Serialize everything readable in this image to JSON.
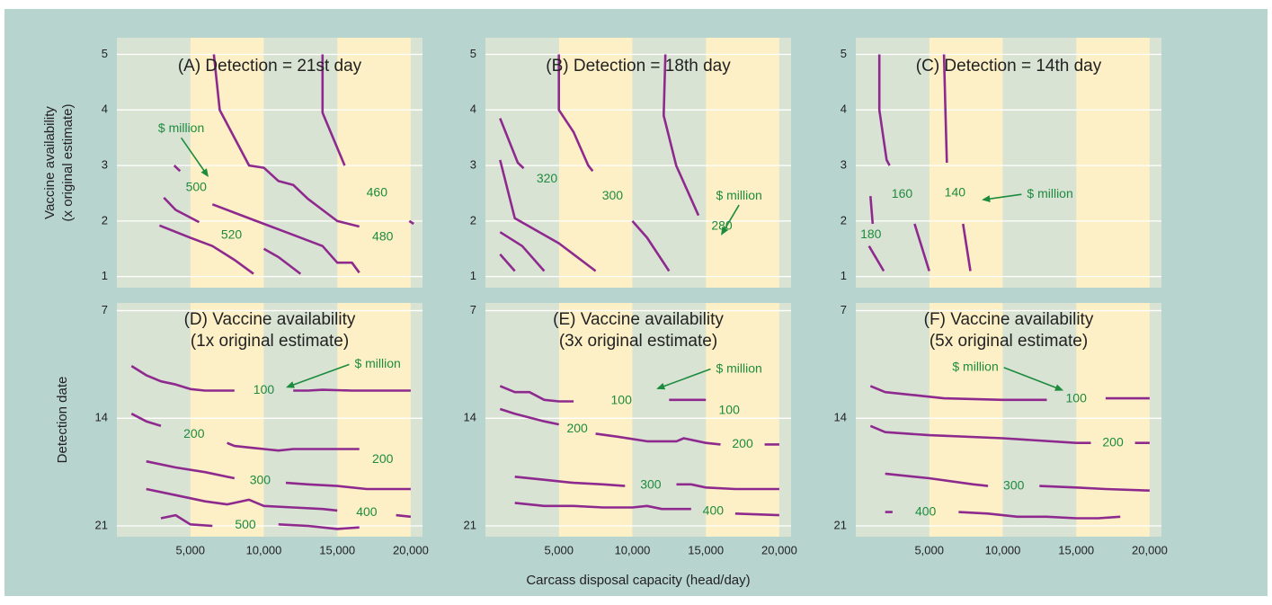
{
  "y_label_top": [
    "Vaccine availability",
    "(x original estimate)"
  ],
  "y_label_bottom": "Detection date",
  "x_label": "Carcass disposal capacity (head/day)",
  "chart_data": [
    {
      "type": "line",
      "title": "(A) Detection = 21st day",
      "xlim": [
        0,
        20800
      ],
      "ylim": [
        0.8,
        5.3
      ],
      "xticks": [
        5000,
        10000,
        15000,
        20000
      ],
      "yticks": [
        1,
        2,
        3,
        4,
        5
      ],
      "grid": true,
      "band_colors": [
        "#d9e3d4",
        "#fdf0c6"
      ],
      "label_color": "#1d8b3e",
      "series": [
        {
          "name": "460",
          "color": "#8e2a8e",
          "x": [
            14000,
            14000,
            15500,
            null,
            19900,
            20200
          ],
          "values": [
            5,
            3.95,
            3.0,
            null,
            2.0,
            1.95
          ]
        },
        {
          "name": "480",
          "color": "#8e2a8e",
          "x": [
            6600,
            7000,
            9000,
            10000,
            11000,
            12000,
            13000,
            14000,
            15000,
            16500,
            null
          ],
          "values": [
            5,
            4.0,
            3.0,
            2.96,
            2.72,
            2.65,
            2.4,
            2.2,
            2.0,
            1.9,
            null
          ]
        },
        {
          "name": "500",
          "color": "#8e2a8e",
          "x": [
            3900,
            4300,
            null,
            6500,
            8000,
            10000,
            12000,
            14000,
            15000,
            16000,
            16500
          ],
          "values": [
            3.0,
            2.9,
            null,
            2.3,
            2.15,
            1.95,
            1.75,
            1.55,
            1.25,
            1.25,
            1.07
          ]
        },
        {
          "name": "520",
          "color": "#8e2a8e",
          "x": [
            3200,
            4000,
            5600,
            null,
            10000,
            11000,
            12500
          ],
          "values": [
            2.42,
            2.2,
            1.98,
            null,
            1.5,
            1.35,
            1.05
          ]
        },
        {
          "color": "#8e2a8e",
          "x": [
            2900,
            5000,
            6500,
            8000,
            9300
          ],
          "values": [
            1.92,
            1.7,
            1.55,
            1.3,
            1.05
          ]
        }
      ],
      "annotation": {
        "text": "$ million",
        "x": 4380,
        "y": 3.66,
        "arrow_to": [
          6240,
          2.79
        ]
      }
    },
    {
      "type": "line",
      "title": "(B) Detection = 18th day",
      "xlim": [
        0,
        20800
      ],
      "ylim": [
        0.8,
        5.3
      ],
      "xticks": [
        5000,
        10000,
        15000,
        20000
      ],
      "yticks": [
        1,
        2,
        3,
        4,
        5
      ],
      "grid": true,
      "band_colors": [
        "#d9e3d4",
        "#fdf0c6"
      ],
      "label_color": "#1d8b3e",
      "series": [
        {
          "name": "280",
          "color": "#8e2a8e",
          "x": [
            12250,
            12130,
            12980,
            14500,
            null
          ],
          "values": [
            5,
            3.9,
            3.0,
            2.1,
            null
          ]
        },
        {
          "name": "300",
          "color": "#8e2a8e",
          "x": [
            5000,
            5000,
            6000,
            7000,
            7300,
            null,
            10000,
            11000,
            12500
          ],
          "values": [
            5,
            4.0,
            3.6,
            3.0,
            2.9,
            null,
            2.0,
            1.7,
            1.1
          ]
        },
        {
          "name": "320",
          "color": "#8e2a8e",
          "x": [
            1000,
            2200,
            2600,
            null
          ],
          "values": [
            3.85,
            3.05,
            2.95,
            null
          ]
        },
        {
          "color": "#8e2a8e",
          "x": [
            1000,
            2000,
            5000,
            7500
          ],
          "values": [
            3.1,
            2.05,
            1.6,
            1.1
          ]
        },
        {
          "color": "#8e2a8e",
          "x": [
            1000,
            2500,
            4000
          ],
          "values": [
            1.8,
            1.55,
            1.1
          ]
        },
        {
          "color": "#8e2a8e",
          "x": [
            1000,
            2000
          ],
          "values": [
            1.4,
            1.1
          ]
        }
      ],
      "annotation": {
        "text": "$ million",
        "x": 17260,
        "y": 2.45,
        "arrow_to": [
          16030,
          1.74
        ]
      }
    },
    {
      "type": "line",
      "title": "(C) Detection = 14th day",
      "xlim": [
        0,
        20800
      ],
      "ylim": [
        0.8,
        5.3
      ],
      "xticks": [
        5000,
        10000,
        15000,
        20000
      ],
      "yticks": [
        1,
        2,
        3,
        4,
        5
      ],
      "grid": true,
      "band_colors": [
        "#d9e3d4",
        "#fdf0c6"
      ],
      "label_color": "#1d8b3e",
      "series": [
        {
          "name": "140",
          "color": "#8e2a8e",
          "x": [
            6000,
            6100,
            6200,
            null,
            7300,
            7800
          ],
          "values": [
            5,
            4,
            3.05,
            null,
            1.95,
            1.1
          ]
        },
        {
          "name": "160",
          "color": "#8e2a8e",
          "x": [
            1600,
            1600,
            2100,
            2300,
            null,
            4000,
            5000
          ],
          "values": [
            5,
            4,
            3.1,
            3.0,
            null,
            1.95,
            1.1
          ]
        },
        {
          "name": "180",
          "color": "#8e2a8e",
          "x": [
            1000,
            1150,
            null,
            900,
            1900
          ],
          "values": [
            2.45,
            1.95,
            null,
            1.55,
            1.1
          ]
        }
      ],
      "annotation": {
        "text": "$ million",
        "x": 13220,
        "y": 2.48,
        "arrow_to": [
          8570,
          2.38
        ]
      }
    },
    {
      "type": "line",
      "title": [
        "(D) Vaccine availability",
        "(1x original estimate)"
      ],
      "xlim": [
        0,
        20800
      ],
      "ylim": [
        21.7,
        6.5
      ],
      "xticks": [
        {
          "value": 5000,
          "label": "5,000"
        },
        {
          "value": 10000,
          "label": "10,000"
        },
        {
          "value": 15000,
          "label": "15,000"
        },
        {
          "value": 20000,
          "label": "20,000"
        }
      ],
      "yticks": [
        7,
        14,
        21
      ],
      "grid": true,
      "band_colors": [
        "#d9e3d4",
        "#fdf0c6"
      ],
      "label_color": "#1d8b3e",
      "series": [
        {
          "name": "100",
          "color": "#8e2a8e",
          "x": [
            1000,
            2000,
            3000,
            4000,
            5000,
            6000,
            8000,
            null,
            12000,
            13000,
            14000,
            16000,
            20000
          ],
          "values": [
            10.6,
            11.2,
            11.6,
            11.8,
            12.1,
            12.2,
            12.2,
            null,
            12.2,
            12.2,
            12.15,
            12.2,
            12.2
          ]
        },
        {
          "name": "200",
          "color": "#8e2a8e",
          "x": [
            1000,
            2000,
            3000,
            null,
            7500,
            8000,
            9000,
            10000,
            11000,
            12000,
            15000,
            16500,
            null
          ],
          "values": [
            13.7,
            14.2,
            14.5,
            null,
            15.6,
            15.8,
            15.9,
            16.0,
            16.1,
            16.0,
            16.0,
            16.0,
            null
          ]
        },
        {
          "name": "300",
          "color": "#8e2a8e",
          "x": [
            2000,
            4000,
            6000,
            8000,
            null,
            11500,
            13000,
            15000,
            17000,
            20000
          ],
          "values": [
            16.8,
            17.2,
            17.5,
            17.9,
            null,
            18.2,
            18.3,
            18.4,
            18.6,
            18.6
          ]
        },
        {
          "name": "400",
          "color": "#8e2a8e",
          "x": [
            2000,
            4000,
            6000,
            7500,
            8000,
            9000,
            10000,
            12000,
            14000,
            15000,
            null,
            19000,
            20000
          ],
          "values": [
            18.6,
            19.0,
            19.4,
            19.6,
            19.5,
            19.3,
            19.7,
            19.8,
            19.9,
            20.0,
            null,
            20.3,
            20.4
          ]
        },
        {
          "name": "500",
          "color": "#8e2a8e",
          "x": [
            3000,
            4000,
            5000,
            6500,
            null,
            11000,
            13000,
            15000,
            16500
          ],
          "values": [
            20.5,
            20.3,
            20.9,
            21.0,
            null,
            20.9,
            21.0,
            21.2,
            21.1
          ]
        }
      ],
      "annotation": {
        "text": "$ million",
        "x": 17750,
        "y": 10.5,
        "arrow_to": [
          11500,
          12.0
        ]
      }
    },
    {
      "type": "line",
      "title": [
        "(E) Vaccine availability",
        "(3x original estimate)"
      ],
      "xlim": [
        0,
        20800
      ],
      "ylim": [
        21.7,
        6.5
      ],
      "xticks": [
        {
          "value": 5000,
          "label": "5,000"
        },
        {
          "value": 10000,
          "label": "10,000"
        },
        {
          "value": 15000,
          "label": "15,000"
        },
        {
          "value": 20000,
          "label": "20,000"
        }
      ],
      "yticks": [
        7,
        14,
        21
      ],
      "grid": true,
      "band_colors": [
        "#d9e3d4",
        "#fdf0c6"
      ],
      "label_color": "#1d8b3e",
      "series": [
        {
          "name": "100",
          "color": "#8e2a8e",
          "x": [
            1000,
            2000,
            3000,
            4000,
            5000,
            6000,
            null,
            12500,
            15000,
            null
          ],
          "values": [
            11.9,
            12.3,
            12.3,
            12.8,
            12.9,
            12.9,
            null,
            12.8,
            12.8,
            null
          ]
        },
        {
          "name": "200",
          "color": "#8e2a8e",
          "x": [
            1000,
            2000,
            4000,
            5000,
            null,
            7500,
            9000,
            11000,
            13000,
            13500,
            15000,
            16000,
            null,
            19000,
            20000
          ],
          "values": [
            13.4,
            13.7,
            14.2,
            14.4,
            null,
            15.0,
            15.2,
            15.5,
            15.5,
            15.3,
            15.6,
            15.7,
            null,
            15.7,
            15.7
          ]
        },
        {
          "name": "300",
          "color": "#8e2a8e",
          "x": [
            2000,
            4000,
            6000,
            8000,
            9500,
            null,
            13000,
            14000,
            15000,
            17000,
            20000
          ],
          "values": [
            17.8,
            18.0,
            18.2,
            18.3,
            18.4,
            null,
            18.3,
            18.3,
            18.5,
            18.6,
            18.6
          ]
        },
        {
          "name": "400",
          "color": "#8e2a8e",
          "x": [
            2000,
            4000,
            6000,
            8000,
            10000,
            11000,
            12000,
            14000,
            null,
            17000,
            20000
          ],
          "values": [
            19.5,
            19.7,
            19.7,
            19.8,
            19.8,
            19.7,
            19.9,
            19.9,
            null,
            20.2,
            20.3
          ]
        }
      ],
      "annotation": {
        "text": "$ million",
        "x": 17260,
        "y": 10.8,
        "arrow_to": [
          11630,
          12.1
        ]
      }
    },
    {
      "type": "line",
      "title": [
        "(F) Vaccine availability",
        "(5x original estimate)"
      ],
      "xlim": [
        0,
        20800
      ],
      "ylim": [
        21.7,
        6.5
      ],
      "xticks": [
        {
          "value": 5000,
          "label": "5,000"
        },
        {
          "value": 10000,
          "label": "10,000"
        },
        {
          "value": 15000,
          "label": "15,000"
        },
        {
          "value": 20000,
          "label": "20,000"
        }
      ],
      "yticks": [
        7,
        14,
        21
      ],
      "grid": true,
      "band_colors": [
        "#d9e3d4",
        "#fdf0c6"
      ],
      "label_color": "#1d8b3e",
      "series": [
        {
          "name": "100",
          "color": "#8e2a8e",
          "x": [
            1000,
            2000,
            4000,
            6000,
            10000,
            13000,
            null,
            17000,
            20000
          ],
          "values": [
            11.9,
            12.3,
            12.5,
            12.7,
            12.8,
            12.8,
            null,
            12.7,
            12.7
          ]
        },
        {
          "name": "200",
          "color": "#8e2a8e",
          "x": [
            1000,
            2000,
            5000,
            10000,
            15000,
            16000,
            null,
            19000,
            20000
          ],
          "values": [
            14.5,
            14.9,
            15.1,
            15.3,
            15.6,
            15.6,
            null,
            15.6,
            15.6
          ]
        },
        {
          "name": "300",
          "color": "#8e2a8e",
          "x": [
            2000,
            5000,
            8000,
            9000,
            null,
            12500,
            15000,
            17000,
            20000
          ],
          "values": [
            17.6,
            17.9,
            18.3,
            18.4,
            null,
            18.4,
            18.5,
            18.6,
            18.7
          ]
        },
        {
          "name": "400",
          "color": "#8e2a8e",
          "x": [
            2000,
            2500,
            null,
            7000,
            9000,
            11000,
            13000,
            15000,
            16500,
            18000
          ],
          "values": [
            20.1,
            20.1,
            null,
            20.1,
            20.2,
            20.4,
            20.4,
            20.5,
            20.5,
            20.4
          ]
        }
      ],
      "annotation": {
        "text": "$ million",
        "x": 8140,
        "y": 10.7,
        "arrow_to": [
          14140,
          12.2
        ]
      }
    }
  ]
}
